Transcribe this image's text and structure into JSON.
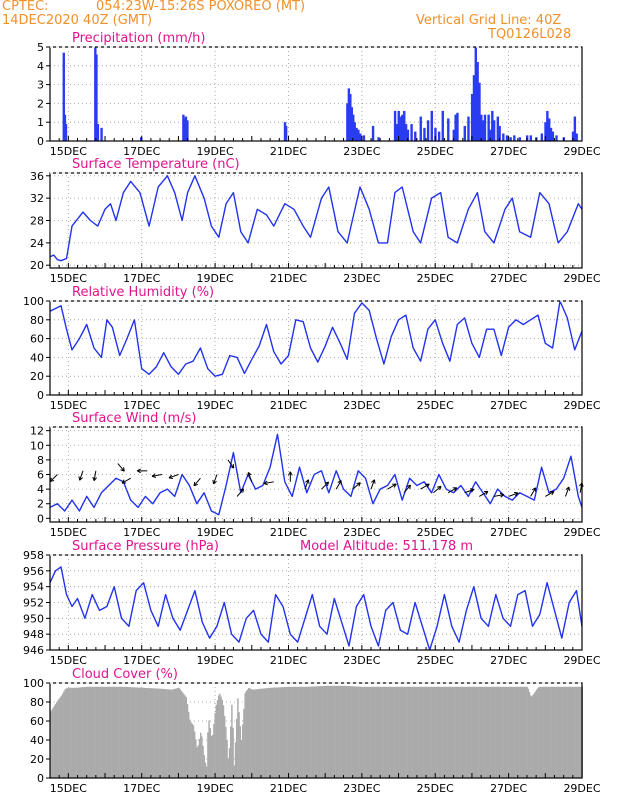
{
  "header": {
    "source": "CPTEC:",
    "location": "054:23W-15:26S   POXOREO (MT)",
    "datetime": "14DEC2020 40Z (GMT)",
    "grid_note": "Vertical Grid Line: 40Z",
    "run_code": "TQ0126L028"
  },
  "colors": {
    "header": "#f0902a",
    "title": "#e0148c",
    "line": "#2233ee",
    "bar": "#2a3cf0",
    "cloud": "#aaaaaa"
  },
  "chart_data": [
    {
      "id": "precip",
      "type": "bar",
      "title": "Precipitation (mm/h)",
      "ylim": [
        0,
        5
      ],
      "yticks": [
        0,
        1,
        2,
        3,
        4,
        5
      ],
      "xlabels": [
        "15DEC",
        "17DEC",
        "19DEC",
        "21DEC",
        "23DEC",
        "25DEC",
        "27DEC",
        "29DEC"
      ],
      "x": [
        14.87,
        14.9,
        14.93,
        15.73,
        15.76,
        15.8,
        15.9,
        16.98,
        18.13,
        18.17,
        18.2,
        18.24,
        20.9,
        20.93,
        22.6,
        22.64,
        22.68,
        22.72,
        22.76,
        22.8,
        22.85,
        22.9,
        22.95,
        23.05,
        23.3,
        23.45,
        23.9,
        23.95,
        24.0,
        24.05,
        24.1,
        24.15,
        24.2,
        24.25,
        24.35,
        24.45,
        24.6,
        24.7,
        24.8,
        24.9,
        25.0,
        25.1,
        25.2,
        25.35,
        25.5,
        25.55,
        25.6,
        25.8,
        25.9,
        26.0,
        26.05,
        26.1,
        26.15,
        26.2,
        26.25,
        26.3,
        26.35,
        26.45,
        26.5,
        26.55,
        26.6,
        26.7,
        26.75,
        26.85,
        26.95,
        27.05,
        27.15,
        27.3,
        27.5,
        27.6,
        27.75,
        27.9,
        28.0,
        28.05,
        28.1,
        28.15,
        28.2,
        28.3,
        28.5,
        28.75,
        28.8,
        28.85
      ],
      "values": [
        4.7,
        1.4,
        0.9,
        5,
        4.6,
        0.9,
        0.7,
        0.2,
        1.4,
        1.2,
        1.3,
        1.1,
        1.0,
        0.8,
        2.0,
        2.8,
        2.5,
        1.8,
        1.4,
        1.0,
        0.7,
        0.6,
        0.4,
        0.3,
        0.8,
        0.2,
        1.6,
        0.9,
        1.6,
        1.3,
        1.4,
        1.6,
        0.9,
        0.6,
        0.9,
        0.5,
        1.3,
        0.7,
        1.1,
        1.6,
        0.7,
        0.5,
        1.6,
        1.2,
        0.6,
        1.4,
        1.5,
        0.8,
        1.3,
        2.5,
        3.5,
        5,
        4.2,
        3.1,
        1.4,
        1.1,
        1.4,
        1.4,
        0.6,
        1.6,
        1.1,
        1.3,
        0.8,
        0.4,
        0.3,
        0.2,
        0.3,
        0.2,
        0.3,
        0.3,
        0.2,
        0.4,
        1.0,
        1.6,
        1.2,
        0.7,
        0.5,
        0.3,
        0.2,
        0.5,
        1.3,
        0.4
      ],
      "xlim": [
        14.5,
        29.0
      ]
    },
    {
      "id": "temp",
      "type": "line",
      "title": "Surface Temperature (nC)",
      "ylim": [
        19.5,
        36.5
      ],
      "yticks": [
        20,
        24,
        28,
        32,
        36
      ],
      "xlabels": [
        "15DEC",
        "17DEC",
        "19DEC",
        "21DEC",
        "23DEC",
        "25DEC",
        "27DEC",
        "29DEC"
      ],
      "x": [
        14.5,
        14.6,
        14.7,
        14.8,
        14.95,
        15.1,
        15.4,
        15.6,
        15.8,
        16.0,
        16.15,
        16.3,
        16.5,
        16.7,
        16.95,
        17.2,
        17.45,
        17.7,
        17.9,
        18.1,
        18.25,
        18.45,
        18.7,
        18.9,
        19.1,
        19.3,
        19.5,
        19.7,
        19.9,
        20.15,
        20.4,
        20.6,
        20.9,
        21.15,
        21.4,
        21.6,
        21.9,
        22.1,
        22.35,
        22.6,
        22.95,
        23.2,
        23.45,
        23.7,
        23.9,
        24.1,
        24.4,
        24.6,
        24.9,
        25.15,
        25.35,
        25.6,
        25.9,
        26.15,
        26.35,
        26.6,
        26.9,
        27.1,
        27.3,
        27.6,
        27.85,
        28.1,
        28.35,
        28.6,
        28.9,
        29.0
      ],
      "values": [
        21.5,
        21.8,
        21.0,
        20.8,
        21.2,
        27,
        29.5,
        28,
        27,
        30,
        31,
        28,
        33,
        35,
        33,
        27,
        34,
        36,
        33,
        28,
        33,
        36,
        32,
        27,
        25,
        31,
        33,
        26,
        24,
        30,
        29,
        27,
        31,
        30,
        27,
        25,
        32,
        34,
        26,
        24,
        34,
        30,
        24,
        24,
        33,
        34,
        26,
        24,
        32,
        33,
        25,
        24,
        30,
        33,
        26,
        24,
        30,
        32,
        26,
        25,
        33,
        31,
        24,
        26,
        31,
        30
      ],
      "xlim": [
        14.5,
        29.0
      ]
    },
    {
      "id": "rh",
      "type": "line",
      "title": "Relative Humidity (%)",
      "ylim": [
        0,
        100
      ],
      "yticks": [
        0,
        20,
        40,
        60,
        80,
        100
      ],
      "xlabels": [
        "15DEC",
        "17DEC",
        "19DEC",
        "21DEC",
        "23DEC",
        "25DEC",
        "27DEC",
        "29DEC"
      ],
      "x": [
        14.5,
        14.65,
        14.8,
        14.95,
        15.1,
        15.3,
        15.5,
        15.7,
        15.9,
        16.05,
        16.2,
        16.4,
        16.6,
        16.8,
        17.0,
        17.2,
        17.4,
        17.6,
        17.8,
        18.0,
        18.2,
        18.4,
        18.6,
        18.8,
        19.0,
        19.2,
        19.4,
        19.6,
        19.8,
        20.0,
        20.2,
        20.4,
        20.6,
        20.8,
        21.0,
        21.2,
        21.4,
        21.6,
        21.8,
        22.0,
        22.2,
        22.4,
        22.6,
        22.8,
        23.0,
        23.2,
        23.4,
        23.6,
        23.8,
        24.0,
        24.2,
        24.4,
        24.6,
        24.8,
        25.0,
        25.2,
        25.4,
        25.6,
        25.8,
        26.0,
        26.2,
        26.4,
        26.6,
        26.8,
        27.0,
        27.2,
        27.4,
        27.6,
        27.8,
        28.0,
        28.2,
        28.4,
        28.6,
        28.8,
        29.0
      ],
      "values": [
        89,
        92,
        95,
        70,
        48,
        60,
        75,
        50,
        40,
        80,
        72,
        42,
        60,
        80,
        28,
        22,
        30,
        45,
        30,
        22,
        33,
        36,
        50,
        28,
        20,
        22,
        42,
        40,
        23,
        38,
        52,
        75,
        46,
        33,
        42,
        80,
        78,
        50,
        35,
        52,
        72,
        56,
        38,
        87,
        98,
        90,
        60,
        33,
        62,
        80,
        85,
        50,
        36,
        70,
        80,
        55,
        36,
        75,
        82,
        55,
        40,
        70,
        70,
        42,
        72,
        80,
        75,
        80,
        85,
        55,
        50,
        100,
        82,
        48,
        68
      ],
      "xlim": [
        14.5,
        29.0
      ]
    },
    {
      "id": "wind",
      "type": "line",
      "title": "Surface Wind (m/s)",
      "ylim": [
        -0.5,
        12.5
      ],
      "yticks": [
        0,
        2,
        4,
        6,
        8,
        10,
        12
      ],
      "xlabels": [
        "15DEC",
        "17DEC",
        "19DEC",
        "21DEC",
        "23DEC",
        "25DEC",
        "27DEC",
        "29DEC"
      ],
      "x": [
        14.5,
        14.7,
        14.9,
        15.1,
        15.3,
        15.5,
        15.7,
        15.9,
        16.1,
        16.3,
        16.5,
        16.7,
        16.9,
        17.1,
        17.3,
        17.5,
        17.7,
        17.9,
        18.1,
        18.3,
        18.5,
        18.7,
        18.9,
        19.1,
        19.3,
        19.5,
        19.7,
        19.9,
        20.1,
        20.3,
        20.5,
        20.7,
        20.9,
        21.1,
        21.3,
        21.5,
        21.7,
        21.9,
        22.1,
        22.3,
        22.5,
        22.7,
        22.9,
        23.1,
        23.3,
        23.5,
        23.7,
        23.9,
        24.1,
        24.3,
        24.5,
        24.7,
        24.9,
        25.1,
        25.3,
        25.5,
        25.7,
        25.9,
        26.1,
        26.3,
        26.5,
        26.7,
        26.9,
        27.1,
        27.3,
        27.5,
        27.7,
        27.9,
        28.1,
        28.3,
        28.5,
        28.7,
        28.9,
        29.0
      ],
      "values": [
        1.5,
        2.0,
        1.0,
        2.5,
        1.0,
        3.0,
        1.5,
        3.5,
        4.5,
        5.5,
        5.0,
        2.5,
        1.5,
        3.0,
        2.0,
        3.5,
        4.0,
        3.0,
        6.0,
        4.5,
        2.0,
        3.5,
        1.0,
        0.5,
        4.5,
        9.0,
        3.5,
        6.0,
        4.0,
        4.5,
        7.0,
        11.5,
        5.0,
        3.0,
        7.0,
        3.5,
        6.0,
        6.5,
        3.5,
        6.5,
        4.0,
        3.0,
        6.5,
        5.5,
        2.0,
        4.0,
        4.5,
        6.0,
        2.5,
        5.5,
        4.5,
        5.0,
        3.5,
        6.0,
        4.0,
        3.5,
        4.5,
        3.0,
        5.0,
        3.5,
        2.0,
        4.0,
        3.0,
        2.5,
        3.5,
        3.0,
        2.5,
        7.0,
        3.5,
        4.0,
        5.5,
        8.5,
        3.0,
        1.5
      ],
      "arrows": [
        {
          "x": 14.7,
          "v": 6,
          "dir": 225
        },
        {
          "x": 15.4,
          "v": 6.5,
          "dir": 200
        },
        {
          "x": 15.75,
          "v": 6.5,
          "dir": 190
        },
        {
          "x": 16.35,
          "v": 7.5,
          "dir": 140
        },
        {
          "x": 16.7,
          "v": 5.5,
          "dir": 240
        },
        {
          "x": 17.15,
          "v": 6.5,
          "dir": 270
        },
        {
          "x": 17.55,
          "v": 6,
          "dir": 260
        },
        {
          "x": 18.0,
          "v": 6,
          "dir": 250
        },
        {
          "x": 18.6,
          "v": 5.5,
          "dir": 220
        },
        {
          "x": 19.05,
          "v": 6,
          "dir": 200
        },
        {
          "x": 19.35,
          "v": 8,
          "dir": 145
        },
        {
          "x": 19.6,
          "v": 3,
          "dir": 40
        },
        {
          "x": 20.0,
          "v": 5,
          "dir": 340
        },
        {
          "x": 20.6,
          "v": 5,
          "dir": 260
        },
        {
          "x": 21.05,
          "v": 5,
          "dir": 0
        },
        {
          "x": 21.45,
          "v": 4,
          "dir": 20
        },
        {
          "x": 21.9,
          "v": 4,
          "dir": 45
        },
        {
          "x": 22.3,
          "v": 4,
          "dir": 30
        },
        {
          "x": 22.75,
          "v": 4,
          "dir": 50
        },
        {
          "x": 23.25,
          "v": 4,
          "dir": 20
        },
        {
          "x": 23.7,
          "v": 4,
          "dir": 60
        },
        {
          "x": 24.15,
          "v": 3.5,
          "dir": 40
        },
        {
          "x": 24.6,
          "v": 4,
          "dir": 60
        },
        {
          "x": 24.95,
          "v": 3.5,
          "dir": 50
        },
        {
          "x": 25.35,
          "v": 3.5,
          "dir": 60
        },
        {
          "x": 25.8,
          "v": 3.5,
          "dir": 70
        },
        {
          "x": 26.2,
          "v": 3,
          "dir": 60
        },
        {
          "x": 26.6,
          "v": 3,
          "dir": 80
        },
        {
          "x": 27.0,
          "v": 3,
          "dir": 70
        },
        {
          "x": 27.6,
          "v": 3,
          "dir": 30
        },
        {
          "x": 28.0,
          "v": 3,
          "dir": 60
        },
        {
          "x": 28.55,
          "v": 3,
          "dir": 20
        },
        {
          "x": 28.95,
          "v": 3.5,
          "dir": 10
        }
      ],
      "xlim": [
        14.5,
        29.0
      ]
    },
    {
      "id": "pres",
      "type": "line",
      "title": "Surface Pressure (hPa)",
      "annotation": "Model Altitude: 511.178 m",
      "ylim": [
        946,
        958
      ],
      "yticks": [
        946,
        948,
        950,
        952,
        954,
        956,
        958
      ],
      "xlabels": [
        "15DEC",
        "17DEC",
        "19DEC",
        "21DEC",
        "23DEC",
        "25DEC",
        "27DEC",
        "29DEC"
      ],
      "x": [
        14.5,
        14.65,
        14.8,
        14.95,
        15.1,
        15.25,
        15.45,
        15.65,
        15.85,
        16.05,
        16.25,
        16.45,
        16.65,
        16.85,
        17.05,
        17.25,
        17.45,
        17.65,
        17.85,
        18.05,
        18.25,
        18.45,
        18.65,
        18.85,
        19.05,
        19.25,
        19.45,
        19.65,
        19.85,
        20.05,
        20.25,
        20.45,
        20.65,
        20.85,
        21.05,
        21.25,
        21.45,
        21.65,
        21.85,
        22.05,
        22.25,
        22.45,
        22.65,
        22.85,
        23.05,
        23.25,
        23.45,
        23.65,
        23.85,
        24.05,
        24.25,
        24.45,
        24.65,
        24.85,
        25.05,
        25.25,
        25.45,
        25.65,
        25.85,
        26.05,
        26.25,
        26.45,
        26.65,
        26.85,
        27.05,
        27.25,
        27.45,
        27.65,
        27.85,
        28.05,
        28.25,
        28.45,
        28.65,
        28.85,
        29.0
      ],
      "values": [
        954.5,
        956,
        956.5,
        953,
        951.5,
        952.5,
        950,
        953,
        951,
        951.5,
        954,
        950,
        949,
        953.5,
        954.5,
        951,
        949,
        953,
        950,
        948.5,
        951,
        953.5,
        949.5,
        947.5,
        949,
        952,
        948,
        947,
        950,
        951,
        948,
        947,
        953,
        951.5,
        948,
        947,
        950,
        953,
        949,
        948,
        952.5,
        949.5,
        946.5,
        951.5,
        953,
        949,
        946.5,
        951,
        952,
        948.5,
        948,
        952,
        949,
        946,
        949,
        953,
        949,
        947,
        951,
        954,
        950,
        949,
        953,
        950,
        949,
        953,
        953.5,
        949,
        950.5,
        954.5,
        951,
        947.5,
        952,
        953.5,
        949
      ],
      "xlim": [
        14.5,
        29.0
      ]
    },
    {
      "id": "cloud",
      "type": "area",
      "title": "Cloud Cover (%)",
      "ylim": [
        0,
        100
      ],
      "yticks": [
        0,
        20,
        40,
        60,
        80,
        100
      ],
      "xlabels": [
        "15DEC",
        "17DEC",
        "19DEC",
        "21DEC",
        "23DEC",
        "25DEC",
        "27DEC",
        "29DEC"
      ],
      "x": [
        14.5,
        14.6,
        14.7,
        14.8,
        14.9,
        15.0,
        15.2,
        15.5,
        16.0,
        16.5,
        17.0,
        17.5,
        17.8,
        18.0,
        18.1,
        18.2,
        18.3,
        18.4,
        18.5,
        18.6,
        18.7,
        18.75,
        18.8,
        18.9,
        19.0,
        19.1,
        19.2,
        19.3,
        19.35,
        19.45,
        19.5,
        19.6,
        19.7,
        19.8,
        19.9,
        20.0,
        20.5,
        21.0,
        21.5,
        22.0,
        22.5,
        23.0,
        23.5,
        24.0,
        24.5,
        25.0,
        25.5,
        26.0,
        26.5,
        27.0,
        27.5,
        27.6,
        27.8,
        28.0,
        28.5,
        29.0
      ],
      "values": [
        70,
        76,
        82,
        87,
        94,
        95,
        95,
        96,
        96,
        96,
        95,
        94,
        93,
        95,
        90,
        85,
        60,
        55,
        30,
        50,
        20,
        10,
        65,
        40,
        75,
        90,
        80,
        45,
        15,
        85,
        10,
        85,
        40,
        90,
        95,
        93,
        95,
        96,
        96,
        97,
        97,
        96,
        96,
        96,
        96,
        96,
        96,
        96,
        96,
        96,
        96,
        85,
        96,
        96,
        96,
        96
      ],
      "xlim": [
        14.5,
        29.0
      ]
    }
  ]
}
